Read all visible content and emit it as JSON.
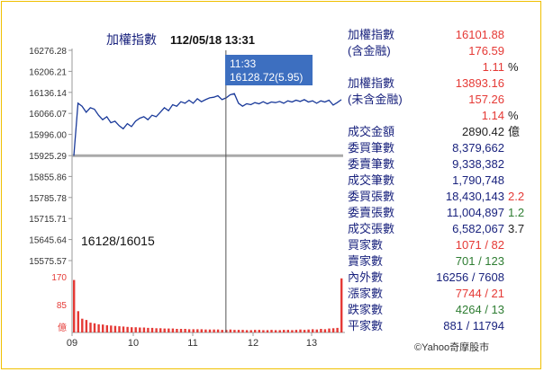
{
  "header": {
    "name": "加權指數",
    "date_time": "112/05/18 13:31"
  },
  "tooltip": {
    "time": "11:33",
    "value": "16128.72(5.95)"
  },
  "annotation": "16128/16015",
  "chart_data": {
    "type": "line",
    "title": "加權指數 112/05/18 13:31",
    "x_ticks": [
      "09",
      "10",
      "11",
      "12",
      "13"
    ],
    "y_ticks": [
      "16276.28",
      "16206.21",
      "16136.14",
      "16066.07",
      "15996.00",
      "15925.29",
      "15855.86",
      "15785.78",
      "15715.71",
      "15645.64",
      "15575.57"
    ],
    "ylim": [
      15575.57,
      16276.28
    ],
    "reference_line": 15925.29,
    "cursor_time": "11:33",
    "series": [
      {
        "values": [
          15925,
          16100,
          16090,
          16070,
          16085,
          16080,
          16060,
          16045,
          16055,
          16035,
          16040,
          16025,
          16015,
          16032,
          16022,
          16040,
          16050,
          16055,
          16045,
          16060,
          16055,
          16070,
          16085,
          16075,
          16095,
          16090,
          16105,
          16100,
          16110,
          16100,
          16115,
          16105,
          16112,
          16118,
          16120,
          16125,
          16112,
          16118,
          16128,
          16132,
          16100,
          16090,
          16098,
          16095,
          16102,
          16098,
          16105,
          16098,
          16104,
          16102,
          16106,
          16100,
          16108,
          16104,
          16110,
          16106,
          16112,
          16104,
          16108,
          16100,
          16108,
          16104,
          16110,
          16094,
          16102,
          16112
        ]
      }
    ],
    "volume": {
      "ylabel": "億",
      "y_ticks": [
        "170",
        "85"
      ],
      "ymax": 170,
      "values": [
        160,
        65,
        42,
        38,
        30,
        28,
        25,
        24,
        22,
        21,
        20,
        19,
        18,
        17,
        16,
        16,
        15,
        15,
        14,
        14,
        13,
        13,
        12,
        12,
        12,
        11,
        11,
        11,
        10,
        10,
        10,
        10,
        9,
        9,
        9,
        9,
        8,
        8,
        9,
        8,
        8,
        8,
        7,
        7,
        8,
        8,
        7,
        7,
        8,
        7,
        7,
        8,
        8,
        7,
        8,
        9,
        8,
        9,
        10,
        9,
        11,
        10,
        12,
        13,
        14,
        165
      ]
    }
  },
  "stats": [
    {
      "label": "加權指數",
      "value": "16101.88",
      "value_color": "red"
    },
    {
      "label": "(含金融)",
      "value": "176.59",
      "value_color": "red"
    },
    {
      "label": "",
      "value": "1.11",
      "value_color": "red",
      "extra": "%",
      "extra_color": "dark"
    },
    {
      "label": "加權指數",
      "value": "13893.16",
      "value_color": "red"
    },
    {
      "label": "(未含金融)",
      "value": "157.26",
      "value_color": "red"
    },
    {
      "label": "",
      "value": "1.14",
      "value_color": "red",
      "extra": "%",
      "extra_color": "dark"
    },
    {
      "label": "成交金額",
      "value": "2890.42",
      "value_color": "dark",
      "extra": "億",
      "extra_color": "dark"
    },
    {
      "label": "委買筆數",
      "value": "8,379,662",
      "value_color": "navy"
    },
    {
      "label": "委賣筆數",
      "value": "9,338,382",
      "value_color": "navy"
    },
    {
      "label": "成交筆數",
      "value": "1,790,748",
      "value_color": "navy"
    },
    {
      "label": "委買張數",
      "value": "18,430,143",
      "value_color": "navy",
      "extra": "2.2",
      "extra_color": "red"
    },
    {
      "label": "委賣張數",
      "value": "11,004,897",
      "value_color": "navy",
      "extra": "1.2",
      "extra_color": "green"
    },
    {
      "label": "成交張數",
      "value": "6,582,067",
      "value_color": "navy",
      "extra": "3.7",
      "extra_color": "dark"
    },
    {
      "label": "買家數",
      "value": "1071 / 82",
      "value_color": "red"
    },
    {
      "label": "賣家數",
      "value": "701 / 123",
      "value_color": "green"
    },
    {
      "label": "內外數",
      "value": "16256 / 7608",
      "value_color": "navy"
    },
    {
      "label": "漲家數",
      "value": "7744 / 21",
      "value_color": "red"
    },
    {
      "label": "跌家數",
      "value": "4264 / 13",
      "value_color": "green"
    },
    {
      "label": "平家數",
      "value": "881 / 11794",
      "value_color": "navy"
    }
  ],
  "copyright": "©Yahoo奇摩股市"
}
